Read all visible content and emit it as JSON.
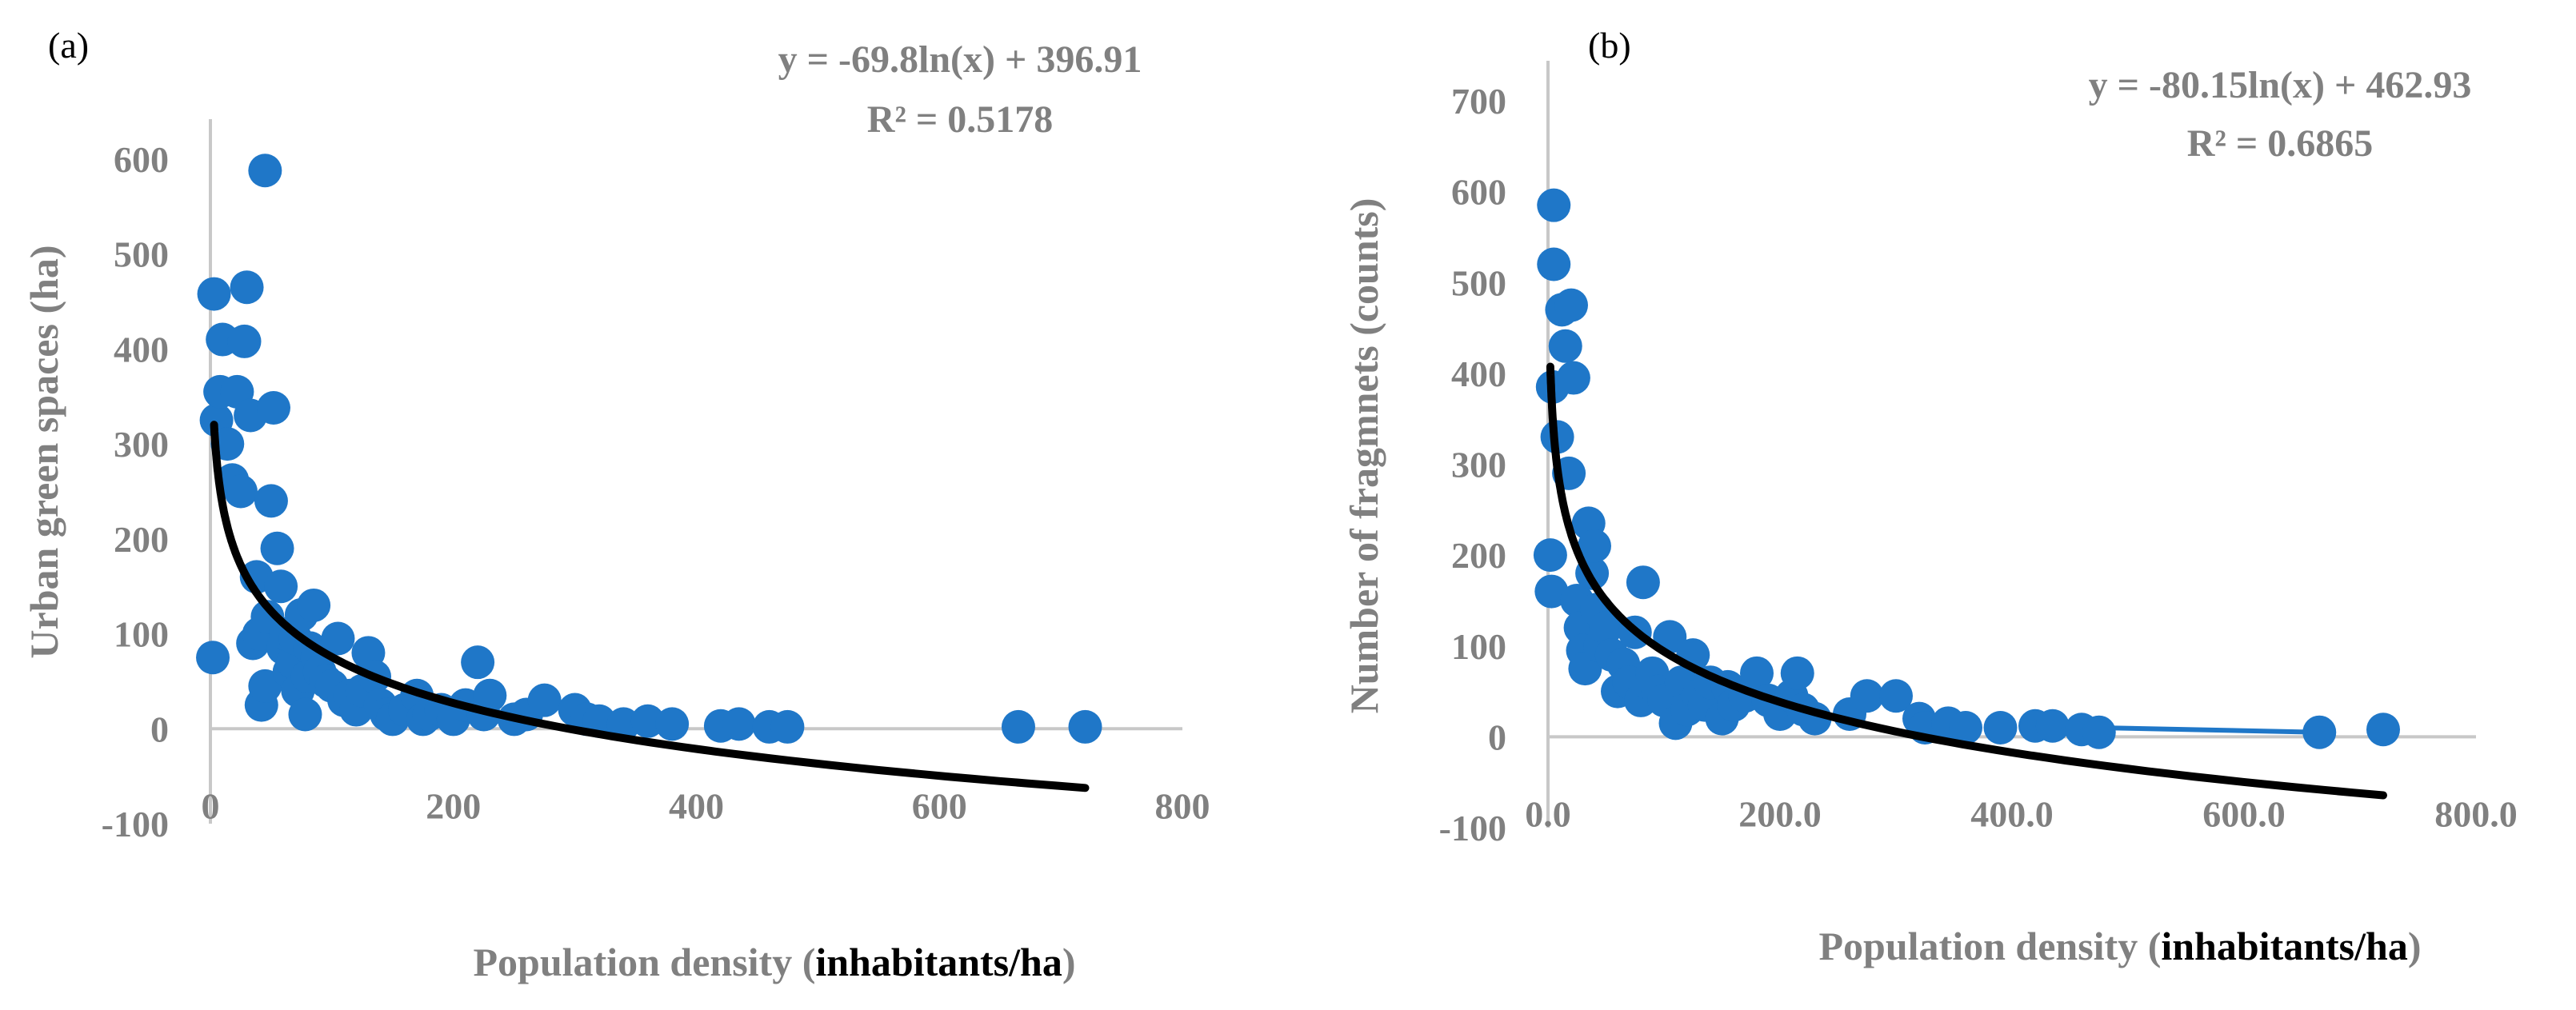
{
  "chart_data": [
    {
      "type": "scatter",
      "panel_label": "(a)",
      "equation": "y = -69.8ln(x) + 396.91",
      "r_squared": "R² = 0.5178",
      "ylabel": "Urban green spaces (ha)",
      "xlabel_prefix": "Population density (",
      "xlabel_bold": "inhabitants/ha",
      "xlabel_suffix": ")",
      "xlim": [
        0,
        800
      ],
      "ylim": [
        -100,
        600
      ],
      "xticks": [
        "0",
        "200",
        "400",
        "600",
        "800"
      ],
      "yticks": [
        "-100",
        "0",
        "100",
        "200",
        "300",
        "400",
        "500",
        "600"
      ],
      "point_color": "#1f77c8",
      "trend_color": "#000000",
      "trend": {
        "a": -69.8,
        "b": 396.91,
        "x_start": 3,
        "x_end": 720
      },
      "points": [
        [
          2,
          75
        ],
        [
          5,
          325
        ],
        [
          8,
          355
        ],
        [
          3,
          458
        ],
        [
          10,
          410
        ],
        [
          14,
          300
        ],
        [
          18,
          262
        ],
        [
          22,
          355
        ],
        [
          25,
          250
        ],
        [
          28,
          408
        ],
        [
          30,
          465
        ],
        [
          33,
          330
        ],
        [
          35,
          90
        ],
        [
          38,
          160
        ],
        [
          40,
          100
        ],
        [
          42,
          25
        ],
        [
          45,
          45
        ],
        [
          47,
          118
        ],
        [
          50,
          240
        ],
        [
          52,
          338
        ],
        [
          55,
          190
        ],
        [
          45,
          588
        ],
        [
          58,
          150
        ],
        [
          60,
          85
        ],
        [
          62,
          100
        ],
        [
          65,
          60
        ],
        [
          68,
          70
        ],
        [
          70,
          95
        ],
        [
          72,
          40
        ],
        [
          75,
          120
        ],
        [
          78,
          15
        ],
        [
          80,
          55
        ],
        [
          82,
          85
        ],
        [
          85,
          130
        ],
        [
          88,
          75
        ],
        [
          90,
          60
        ],
        [
          95,
          50
        ],
        [
          100,
          45
        ],
        [
          105,
          95
        ],
        [
          110,
          30
        ],
        [
          115,
          35
        ],
        [
          120,
          20
        ],
        [
          125,
          40
        ],
        [
          130,
          80
        ],
        [
          135,
          55
        ],
        [
          140,
          25
        ],
        [
          145,
          15
        ],
        [
          150,
          10
        ],
        [
          160,
          20
        ],
        [
          170,
          35
        ],
        [
          175,
          10
        ],
        [
          180,
          15
        ],
        [
          190,
          20
        ],
        [
          200,
          10
        ],
        [
          210,
          25
        ],
        [
          220,
          70
        ],
        [
          225,
          15
        ],
        [
          230,
          35
        ],
        [
          250,
          10
        ],
        [
          260,
          15
        ],
        [
          275,
          30
        ],
        [
          300,
          20
        ],
        [
          310,
          10
        ],
        [
          320,
          8
        ],
        [
          340,
          5
        ],
        [
          360,
          8
        ],
        [
          380,
          5
        ],
        [
          420,
          3
        ],
        [
          435,
          5
        ],
        [
          460,
          2
        ],
        [
          475,
          2
        ],
        [
          665,
          2
        ],
        [
          720,
          2
        ]
      ]
    },
    {
      "type": "scatter",
      "panel_label": "(b)",
      "equation": "y = -80.15ln(x) + 462.93",
      "r_squared": "R² = 0.6865",
      "ylabel": "Number of fragmnets (counts)",
      "xlabel_prefix": "Population density (",
      "xlabel_bold": "inhabitants/ha",
      "xlabel_suffix": ")",
      "xlim": [
        0,
        800
      ],
      "ylim": [
        -100,
        700
      ],
      "xticks": [
        "0.0",
        "200.0",
        "400.0",
        "600.0",
        "800.0"
      ],
      "yticks": [
        "-100",
        "0",
        "100",
        "200",
        "300",
        "400",
        "500",
        "600",
        "700"
      ],
      "point_color": "#1f77c8",
      "trend_color": "#000000",
      "trend": {
        "a": -80.15,
        "b": 462.93,
        "x_start": 2,
        "x_end": 720
      },
      "points": [
        [
          2,
          200
        ],
        [
          3,
          160
        ],
        [
          4,
          385
        ],
        [
          5,
          585
        ],
        [
          5,
          520
        ],
        [
          8,
          330
        ],
        [
          12,
          470
        ],
        [
          15,
          430
        ],
        [
          18,
          290
        ],
        [
          20,
          475
        ],
        [
          22,
          395
        ],
        [
          25,
          150
        ],
        [
          28,
          120
        ],
        [
          30,
          95
        ],
        [
          32,
          75
        ],
        [
          35,
          235
        ],
        [
          38,
          180
        ],
        [
          40,
          210
        ],
        [
          42,
          140
        ],
        [
          45,
          100
        ],
        [
          50,
          120
        ],
        [
          55,
          90
        ],
        [
          60,
          50
        ],
        [
          65,
          80
        ],
        [
          70,
          60
        ],
        [
          75,
          115
        ],
        [
          80,
          40
        ],
        [
          82,
          170
        ],
        [
          85,
          60
        ],
        [
          90,
          70
        ],
        [
          95,
          50
        ],
        [
          100,
          40
        ],
        [
          105,
          110
        ],
        [
          110,
          15
        ],
        [
          115,
          60
        ],
        [
          120,
          30
        ],
        [
          125,
          90
        ],
        [
          130,
          45
        ],
        [
          135,
          35
        ],
        [
          140,
          60
        ],
        [
          150,
          20
        ],
        [
          155,
          55
        ],
        [
          160,
          35
        ],
        [
          170,
          45
        ],
        [
          180,
          70
        ],
        [
          190,
          40
        ],
        [
          200,
          25
        ],
        [
          210,
          45
        ],
        [
          215,
          70
        ],
        [
          220,
          30
        ],
        [
          230,
          20
        ],
        [
          260,
          25
        ],
        [
          275,
          45
        ],
        [
          300,
          45
        ],
        [
          320,
          20
        ],
        [
          325,
          10
        ],
        [
          345,
          15
        ],
        [
          360,
          10
        ],
        [
          390,
          10
        ],
        [
          420,
          12
        ],
        [
          435,
          12
        ],
        [
          460,
          8
        ],
        [
          475,
          5
        ],
        [
          665,
          5
        ],
        [
          720,
          8
        ]
      ],
      "connector_points": [
        [
          475,
          10
        ],
        [
          665,
          5
        ]
      ]
    }
  ]
}
